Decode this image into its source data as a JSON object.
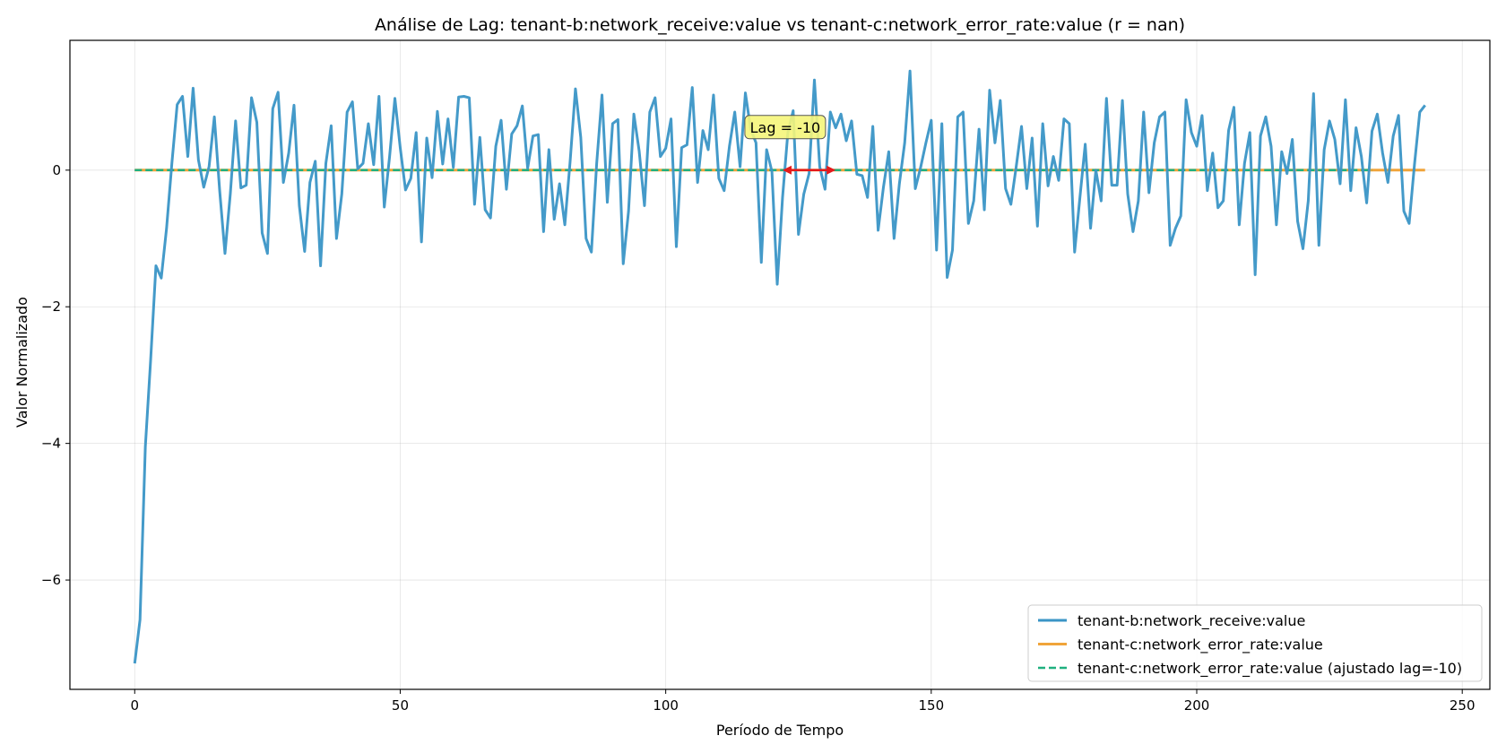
{
  "chart_data": {
    "type": "line",
    "title": "Análise de Lag: tenant-b:network_receive:value vs tenant-c:network_error_rate:value (r = nan)",
    "xlabel": "Período de Tempo",
    "ylabel": "Valor Normalizado",
    "xlim": [
      -12.2,
      255.2
    ],
    "ylim": [
      -7.6,
      1.9
    ],
    "xticks": [
      0,
      50,
      100,
      150,
      200,
      250
    ],
    "yticks": [
      -6,
      -4,
      -2,
      0
    ],
    "ytick_labels": [
      "−6",
      "−4",
      "−2",
      "0"
    ],
    "grid": true,
    "legend_position": "lower-right",
    "series": [
      {
        "name": "tenant-b:network_receive:value",
        "color": "#3a95c6",
        "style": "solid",
        "x_start": 0,
        "values": [
          -7.22,
          -6.58,
          -4.05,
          -2.78,
          -1.4,
          -1.58,
          -0.85,
          0.1,
          0.96,
          1.08,
          0.2,
          1.2,
          0.15,
          -0.25,
          0.05,
          0.78,
          -0.3,
          -1.22,
          -0.35,
          0.72,
          -0.26,
          -0.22,
          1.06,
          0.7,
          -0.92,
          -1.22,
          0.9,
          1.14,
          -0.18,
          0.25,
          0.95,
          -0.52,
          -1.19,
          -0.18,
          0.13,
          -1.4,
          0.1,
          0.65,
          -1.0,
          -0.35,
          0.85,
          1.0,
          0.02,
          0.1,
          0.68,
          0.08,
          1.08,
          -0.54,
          0.2,
          1.05,
          0.33,
          -0.29,
          -0.12,
          0.55,
          -1.05,
          0.47,
          -0.11,
          0.86,
          0.09,
          0.75,
          0.04,
          1.07,
          1.08,
          1.06,
          -0.5,
          0.48,
          -0.58,
          -0.7,
          0.35,
          0.73,
          -0.28,
          0.53,
          0.65,
          0.94,
          0.03,
          0.5,
          0.52,
          -0.9,
          0.3,
          -0.72,
          -0.2,
          -0.8,
          0.13,
          1.19,
          0.48,
          -1.0,
          -1.2,
          0.1,
          1.1,
          -0.47,
          0.68,
          0.74,
          -1.37,
          -0.6,
          0.82,
          0.28,
          -0.52,
          0.85,
          1.06,
          0.2,
          0.32,
          0.75,
          -1.12,
          0.33,
          0.37,
          1.21,
          -0.18,
          0.58,
          0.3,
          1.1,
          -0.12,
          -0.3,
          0.35,
          0.85,
          0.05,
          1.13,
          0.6,
          0.4,
          -1.35,
          0.3,
          -0.02,
          -1.67,
          -0.4,
          0.55,
          0.87,
          -0.94,
          -0.35,
          -0.05,
          1.32,
          0.05,
          -0.28,
          0.85,
          0.62,
          0.82,
          0.43,
          0.72,
          -0.06,
          -0.08,
          -0.4,
          0.64,
          -0.88,
          -0.25,
          0.27,
          -1.0,
          -0.2,
          0.4,
          1.45,
          -0.27,
          0.04,
          0.4,
          0.73,
          -1.17,
          0.68,
          -1.57,
          -1.17,
          0.78,
          0.85,
          -0.78,
          -0.45,
          0.6,
          -0.58,
          1.17,
          0.4,
          1.02,
          -0.27,
          -0.5,
          0.05,
          0.64,
          -0.27,
          0.47,
          -0.82,
          0.68,
          -0.23,
          0.2,
          -0.15,
          0.75,
          0.68,
          -1.2,
          -0.4,
          0.38,
          -0.85,
          0.0,
          -0.45,
          1.05,
          -0.22,
          -0.22,
          1.02,
          -0.35,
          -0.9,
          -0.45,
          0.85,
          -0.33,
          0.4,
          0.78,
          0.85,
          -1.1,
          -0.85,
          -0.67,
          1.03,
          0.55,
          0.35,
          0.8,
          -0.3,
          0.25,
          -0.55,
          -0.45,
          0.58,
          0.92,
          -0.8,
          0.1,
          0.55,
          -1.53,
          0.5,
          0.78,
          0.35,
          -0.8,
          0.27,
          -0.05,
          0.45,
          -0.75,
          -1.15,
          -0.45,
          1.12,
          -1.1,
          0.3,
          0.72,
          0.45,
          -0.2,
          1.03,
          -0.3,
          0.62,
          0.2,
          -0.48,
          0.57,
          0.82,
          0.25,
          -0.18,
          0.5,
          0.8,
          -0.6,
          -0.78,
          0.08,
          0.85,
          0.95
        ]
      },
      {
        "name": "tenant-c:network_error_rate:value",
        "color": "#f0a43a",
        "style": "solid",
        "x": [
          0,
          243
        ],
        "values": [
          0,
          0
        ]
      },
      {
        "name": "tenant-c:network_error_rate:value (ajustado lag=-10)",
        "color": "#1fb07f",
        "style": "dashed",
        "x": [
          0,
          233
        ],
        "values": [
          0,
          0
        ]
      }
    ],
    "annotations": [
      {
        "text": "Lag = -10",
        "x": 122.5,
        "y": 0.63,
        "box_color": "#f5f57a",
        "arrow": {
          "x_from": 122,
          "x_to": 132,
          "y": 0,
          "color": "#e41a1c"
        }
      }
    ]
  }
}
